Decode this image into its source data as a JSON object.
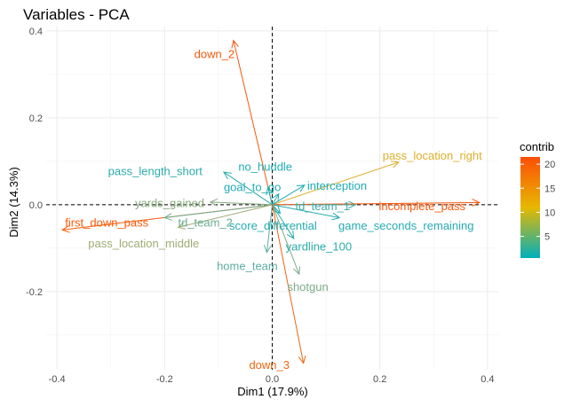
{
  "chart_data": {
    "type": "scatter",
    "subtype": "pca-variable-arrows",
    "title": "Variables - PCA",
    "xlabel": "Dim1 (17.9%)",
    "ylabel": "Dim2 (14.3%)",
    "xlim": [
      -0.42,
      0.42
    ],
    "ylim": [
      -0.38,
      0.41
    ],
    "xticks": [
      -0.4,
      -0.2,
      0.0,
      0.2,
      0.4
    ],
    "xtick_labels": [
      "-0.4",
      "-0.2",
      "0.0",
      "0.2",
      "0.4"
    ],
    "yticks": [
      -0.2,
      0.0,
      0.2,
      0.4
    ],
    "ytick_labels": [
      "-0.2",
      "0.0",
      "0.2",
      "0.4"
    ],
    "grid": true,
    "reference_lines": {
      "x": 0,
      "y": 0
    },
    "legend": {
      "title": "contrib",
      "position": "right",
      "min": 0.5,
      "max": 21.5,
      "ticks": [
        5,
        10,
        15,
        20
      ],
      "tick_labels": [
        "5",
        "10",
        "15",
        "20"
      ],
      "gradient_colors": [
        "#00AFBB",
        "#E7B800",
        "#FC4E07"
      ]
    },
    "variables": [
      {
        "name": "down_2",
        "x": -0.072,
        "y": 0.378,
        "contrib": 19.0,
        "label_x": -0.145,
        "label_y": 0.348,
        "color": "#F35A0C"
      },
      {
        "name": "pass_location_right",
        "x": 0.235,
        "y": 0.098,
        "contrib": 13.0,
        "label_x": 0.205,
        "label_y": 0.114,
        "color": "#DEAE2B"
      },
      {
        "name": "pass_length_short",
        "x": -0.09,
        "y": 0.075,
        "contrib": 3.5,
        "label_x": -0.305,
        "label_y": 0.078,
        "color": "#2AADAB"
      },
      {
        "name": "no_huddle",
        "x": -0.008,
        "y": 0.04,
        "contrib": 2.0,
        "label_x": -0.063,
        "label_y": 0.088,
        "color": "#22ACB3"
      },
      {
        "name": "goal_to_go",
        "x": 0.012,
        "y": 0.025,
        "contrib": 2.0,
        "label_x": -0.09,
        "label_y": 0.042,
        "color": "#22ACB3"
      },
      {
        "name": "interception",
        "x": 0.06,
        "y": 0.045,
        "contrib": 3.0,
        "label_x": 0.065,
        "label_y": 0.045,
        "color": "#1EACB5"
      },
      {
        "name": "yards_gained",
        "x": -0.115,
        "y": 0.006,
        "contrib": 6.5,
        "label_x": -0.255,
        "label_y": 0.005,
        "color": "#86AA7E"
      },
      {
        "name": "td_team_1",
        "x": 0.155,
        "y": 0.0,
        "contrib": 4.5,
        "label_x": 0.043,
        "label_y": -0.002,
        "color": "#3EADAA"
      },
      {
        "name": "incomplete_pass",
        "x": 0.385,
        "y": 0.005,
        "contrib": 20.5,
        "label_x": 0.198,
        "label_y": -0.002,
        "color": "#F9570A"
      },
      {
        "name": "first_down_pass",
        "x": -0.39,
        "y": -0.058,
        "contrib": 20.0,
        "label_x": -0.385,
        "label_y": -0.04,
        "color": "#F95A09"
      },
      {
        "name": "td_team_2",
        "x": -0.2,
        "y": -0.03,
        "contrib": 7.5,
        "label_x": -0.175,
        "label_y": -0.04,
        "color": "#6BAE93"
      },
      {
        "name": "score_differential",
        "x": 0.015,
        "y": -0.02,
        "contrib": 3.0,
        "label_x": -0.08,
        "label_y": -0.047,
        "color": "#26ACB2"
      },
      {
        "name": "game_seconds_remaining",
        "x": 0.125,
        "y": -0.03,
        "contrib": 3.0,
        "label_x": 0.123,
        "label_y": -0.047,
        "color": "#26ACB2"
      },
      {
        "name": "pass_location_middle",
        "x": -0.175,
        "y": -0.052,
        "contrib": 9.0,
        "label_x": -0.342,
        "label_y": -0.088,
        "color": "#9FAD74"
      },
      {
        "name": "yardline_100",
        "x": 0.04,
        "y": -0.078,
        "contrib": 3.0,
        "label_x": 0.025,
        "label_y": -0.095,
        "color": "#2AADAB"
      },
      {
        "name": "home_team",
        "x": -0.01,
        "y": -0.11,
        "contrib": 5.5,
        "label_x": -0.103,
        "label_y": -0.14,
        "color": "#5CAEA1"
      },
      {
        "name": "shotgun",
        "x": 0.05,
        "y": -0.16,
        "contrib": 7.0,
        "label_x": 0.028,
        "label_y": -0.188,
        "color": "#7DAB8A"
      },
      {
        "name": "down_3",
        "x": 0.058,
        "y": -0.365,
        "contrib": 17.0,
        "label_x": -0.043,
        "label_y": -0.368,
        "color": "#F06410"
      }
    ]
  }
}
